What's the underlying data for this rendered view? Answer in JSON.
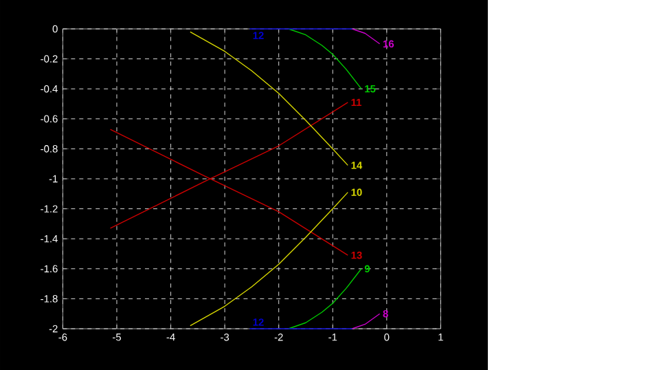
{
  "chart_data": {
    "type": "line",
    "xlim": [
      -6,
      1
    ],
    "ylim": [
      -2,
      0
    ],
    "xticks": [
      -6,
      -5,
      -4,
      -3,
      -2,
      -1,
      0,
      1
    ],
    "yticks": [
      -2,
      -1.8,
      -1.6,
      -1.4,
      -1.2,
      -1,
      -0.8,
      -0.6,
      -0.4,
      -0.2,
      0
    ],
    "grid": true,
    "series": [
      {
        "name": "11",
        "color": "#cc0000",
        "x": [
          -5.12,
          -4,
          -3.27,
          -2,
          -0.72
        ],
        "values": [
          -1.33,
          -1.13,
          -1.0,
          -0.78,
          -0.49
        ]
      },
      {
        "name": "13",
        "color": "#cc0000",
        "x": [
          -5.12,
          -4,
          -3.27,
          -2,
          -0.72
        ],
        "values": [
          -0.67,
          -0.87,
          -1.0,
          -1.22,
          -1.51
        ]
      },
      {
        "name": "14",
        "color": "#d8d800",
        "x": [
          -3.64,
          -3,
          -2.5,
          -2,
          -1.5,
          -1,
          -0.72
        ],
        "values": [
          -0.02,
          -0.15,
          -0.28,
          -0.43,
          -0.61,
          -0.8,
          -0.91
        ]
      },
      {
        "name": "10",
        "color": "#d8d800",
        "x": [
          -3.64,
          -3,
          -2.5,
          -2,
          -1.5,
          -1,
          -0.72
        ],
        "values": [
          -1.98,
          -1.85,
          -1.72,
          -1.57,
          -1.39,
          -1.2,
          -1.09
        ]
      },
      {
        "name": "15",
        "color": "#00cc00",
        "x": [
          -1.82,
          -1.5,
          -1.2,
          -1,
          -0.75,
          -0.47
        ],
        "values": [
          0,
          -0.04,
          -0.11,
          -0.17,
          -0.27,
          -0.4
        ]
      },
      {
        "name": "9",
        "color": "#00cc00",
        "x": [
          -1.82,
          -1.5,
          -1.2,
          -1,
          -0.75,
          -0.47
        ],
        "values": [
          -2,
          -1.96,
          -1.89,
          -1.83,
          -1.73,
          -1.6
        ]
      },
      {
        "name": "16",
        "color": "#cc00cc",
        "x": [
          -0.64,
          -0.4,
          -0.13
        ],
        "values": [
          0,
          -0.03,
          -0.1
        ]
      },
      {
        "name": "8",
        "color": "#cc00cc",
        "x": [
          -0.64,
          -0.4,
          -0.13
        ],
        "values": [
          -2,
          -1.97,
          -1.9
        ]
      },
      {
        "name": "12",
        "color": "#0000cc",
        "x": [
          -0.64,
          -1.6,
          -2.54
        ],
        "values": [
          0,
          0,
          0
        ]
      },
      {
        "name": "12",
        "color": "#0000cc",
        "x": [
          -0.64,
          -1.6,
          -2.54
        ],
        "values": [
          -2,
          -2,
          -2
        ]
      }
    ]
  }
}
